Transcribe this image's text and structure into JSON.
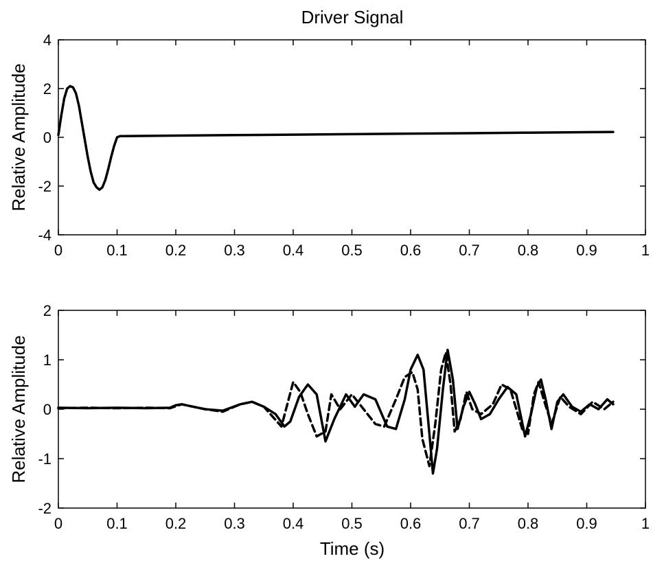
{
  "chart_data": [
    {
      "type": "line",
      "title": "Driver Signal",
      "xlabel": "",
      "ylabel": "Relative Amplitude",
      "xlim": [
        0,
        1
      ],
      "ylim": [
        -4,
        4
      ],
      "xticks": [
        0,
        0.1,
        0.2,
        0.3,
        0.4,
        0.5,
        0.6,
        0.7,
        0.8,
        0.9,
        1
      ],
      "xtick_labels": [
        "0",
        "0.1",
        "0.2",
        "0.3",
        "0.4",
        "0.5",
        "0.6",
        "0.7",
        "0.8",
        "0.9",
        "1"
      ],
      "yticks": [
        -4,
        -2,
        0,
        2,
        4
      ],
      "ytick_labels": [
        "-4",
        "-2",
        "0",
        "2",
        "4"
      ],
      "grid": false,
      "series": [
        {
          "style": "solid",
          "color": "#000000",
          "x": [
            0,
            0.005,
            0.01,
            0.015,
            0.02,
            0.025,
            0.03,
            0.035,
            0.04,
            0.045,
            0.05,
            0.055,
            0.06,
            0.065,
            0.07,
            0.075,
            0.08,
            0.085,
            0.09,
            0.095,
            0.1,
            0.105,
            0.11,
            0.2,
            0.3,
            0.4,
            0.5,
            0.6,
            0.7,
            0.8,
            0.9,
            0.945
          ],
          "y": [
            0.1,
            0.9,
            1.6,
            2.0,
            2.1,
            2.05,
            1.8,
            1.3,
            0.6,
            -0.1,
            -0.8,
            -1.4,
            -1.85,
            -2.05,
            -2.15,
            -2.05,
            -1.75,
            -1.3,
            -0.8,
            -0.35,
            0.0,
            0.05,
            0.05,
            0.07,
            0.09,
            0.11,
            0.13,
            0.15,
            0.17,
            0.19,
            0.21,
            0.22
          ]
        }
      ]
    },
    {
      "type": "line",
      "title": "",
      "xlabel": "Time (s)",
      "ylabel": "Relative Amplitude",
      "xlim": [
        0,
        1
      ],
      "ylim": [
        -2,
        2
      ],
      "xticks": [
        0,
        0.1,
        0.2,
        0.3,
        0.4,
        0.5,
        0.6,
        0.7,
        0.8,
        0.9,
        1
      ],
      "xtick_labels": [
        "0",
        "0.1",
        "0.2",
        "0.3",
        "0.4",
        "0.5",
        "0.6",
        "0.7",
        "0.8",
        "0.9",
        "1"
      ],
      "yticks": [
        -2,
        -1,
        0,
        1,
        2
      ],
      "ytick_labels": [
        "-2",
        "-1",
        "0",
        "1",
        "2"
      ],
      "grid": false,
      "series": [
        {
          "style": "solid",
          "color": "#000000",
          "x": [
            0,
            0.05,
            0.1,
            0.15,
            0.19,
            0.2,
            0.21,
            0.23,
            0.25,
            0.28,
            0.31,
            0.33,
            0.35,
            0.37,
            0.385,
            0.395,
            0.41,
            0.425,
            0.44,
            0.455,
            0.47,
            0.49,
            0.505,
            0.52,
            0.54,
            0.56,
            0.575,
            0.59,
            0.6,
            0.612,
            0.622,
            0.632,
            0.638,
            0.645,
            0.655,
            0.663,
            0.672,
            0.68,
            0.69,
            0.7,
            0.71,
            0.72,
            0.735,
            0.75,
            0.765,
            0.78,
            0.795,
            0.805,
            0.815,
            0.822,
            0.83,
            0.84,
            0.85,
            0.86,
            0.875,
            0.89,
            0.905,
            0.92,
            0.935,
            0.945
          ],
          "y": [
            0.03,
            0.02,
            0.03,
            0.02,
            0.03,
            0.08,
            0.1,
            0.05,
            0.0,
            -0.03,
            0.1,
            0.15,
            0.05,
            -0.1,
            -0.35,
            -0.25,
            0.25,
            0.5,
            0.3,
            -0.65,
            -0.2,
            0.3,
            0.05,
            0.3,
            0.2,
            -0.35,
            -0.4,
            0.2,
            0.8,
            1.1,
            0.8,
            -0.5,
            -1.3,
            -0.8,
            0.4,
            1.2,
            0.6,
            -0.4,
            0.05,
            0.35,
            0.1,
            -0.2,
            -0.1,
            0.2,
            0.45,
            0.3,
            -0.55,
            -0.1,
            0.45,
            0.6,
            0.2,
            -0.4,
            0.15,
            0.3,
            0.05,
            -0.05,
            0.1,
            0.0,
            0.2,
            0.1
          ]
        },
        {
          "style": "dashed",
          "color": "#000000",
          "x": [
            0,
            0.05,
            0.1,
            0.15,
            0.19,
            0.2,
            0.21,
            0.23,
            0.25,
            0.28,
            0.31,
            0.33,
            0.35,
            0.365,
            0.38,
            0.39,
            0.4,
            0.412,
            0.425,
            0.44,
            0.455,
            0.465,
            0.48,
            0.5,
            0.52,
            0.54,
            0.555,
            0.575,
            0.59,
            0.603,
            0.612,
            0.62,
            0.632,
            0.642,
            0.652,
            0.66,
            0.668,
            0.675,
            0.685,
            0.695,
            0.705,
            0.72,
            0.74,
            0.755,
            0.77,
            0.79,
            0.8,
            0.81,
            0.818,
            0.828,
            0.84,
            0.855,
            0.87,
            0.89,
            0.91,
            0.93,
            0.945
          ],
          "y": [
            0.02,
            0.03,
            0.02,
            0.03,
            0.02,
            0.06,
            0.1,
            0.05,
            0.0,
            -0.05,
            0.1,
            0.15,
            0.05,
            -0.15,
            -0.35,
            0.1,
            0.55,
            0.35,
            -0.1,
            -0.55,
            -0.45,
            0.3,
            0.0,
            0.3,
            0.0,
            -0.3,
            -0.35,
            0.2,
            0.65,
            0.75,
            0.4,
            -0.6,
            -1.15,
            -0.3,
            0.8,
            1.15,
            0.5,
            -0.45,
            -0.2,
            0.35,
            0.0,
            -0.1,
            0.1,
            0.5,
            0.4,
            -0.4,
            -0.5,
            0.3,
            0.55,
            0.15,
            -0.3,
            0.25,
            0.05,
            -0.1,
            0.15,
            0.0,
            0.15
          ]
        }
      ]
    }
  ]
}
